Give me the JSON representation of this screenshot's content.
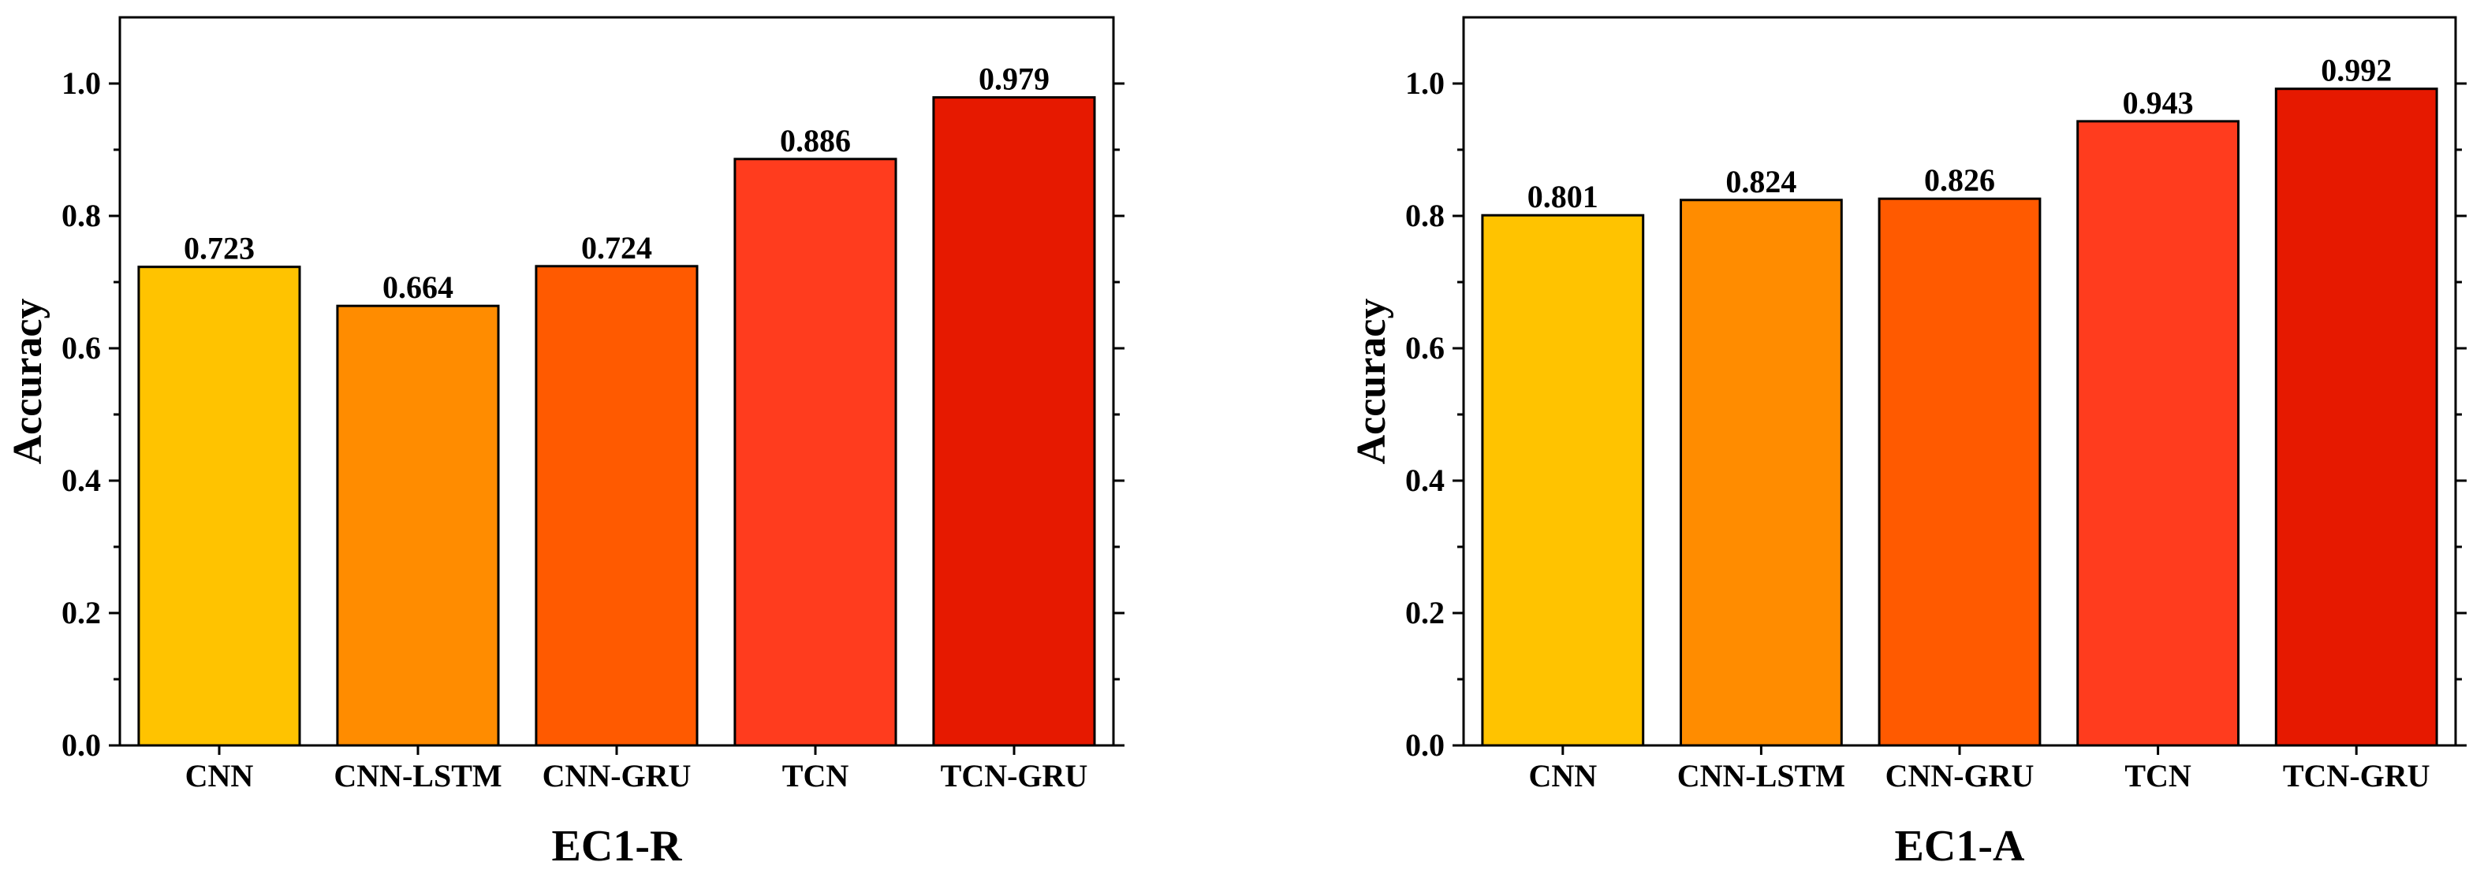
{
  "chart_data": [
    {
      "type": "bar",
      "categories": [
        "CNN",
        "CNN-LSTM",
        "CNN-GRU",
        "TCN",
        "TCN-GRU"
      ],
      "values": [
        0.723,
        0.664,
        0.724,
        0.886,
        0.979
      ],
      "value_labels": [
        "0.723",
        "0.664",
        "0.724",
        "0.886",
        "0.979"
      ],
      "colors": [
        "#FFC300",
        "#FF8C00",
        "#FF5A00",
        "#FF3C1E",
        "#E61900"
      ],
      "xlabel": "EC1-R",
      "ylabel": "Accuracy",
      "ylim": [
        0,
        1.1
      ],
      "yticks": [
        "0.0",
        "0.2",
        "0.4",
        "0.6",
        "0.8",
        "1.0"
      ],
      "grid": false
    },
    {
      "type": "bar",
      "categories": [
        "CNN",
        "CNN-LSTM",
        "CNN-GRU",
        "TCN",
        "TCN-GRU"
      ],
      "values": [
        0.801,
        0.824,
        0.826,
        0.943,
        0.992
      ],
      "value_labels": [
        "0.801",
        "0.824",
        "0.826",
        "0.943",
        "0.992"
      ],
      "colors": [
        "#FFC300",
        "#FF8C00",
        "#FF5A00",
        "#FF3C1E",
        "#E61900"
      ],
      "xlabel": "EC1-A",
      "ylabel": "Accuracy",
      "ylim": [
        0,
        1.1
      ],
      "yticks": [
        "0.0",
        "0.2",
        "0.4",
        "0.6",
        "0.8",
        "1.0"
      ],
      "grid": false
    }
  ]
}
